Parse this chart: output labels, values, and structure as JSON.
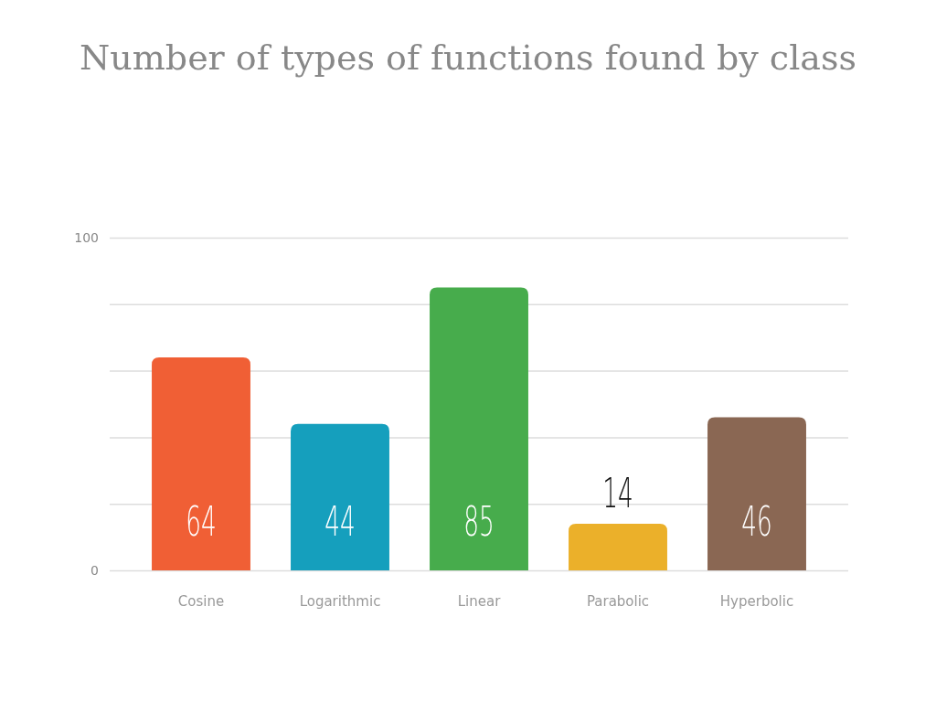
{
  "chart_data": {
    "type": "bar",
    "title": "Number of types of functions found by class",
    "categories": [
      "Cosine",
      "Logarithmic",
      "Linear",
      "Parabolic",
      "Hyperbolic"
    ],
    "values": [
      64,
      44,
      85,
      14,
      46
    ],
    "colors": [
      "#f05f35",
      "#159fbd",
      "#47ac4c",
      "#ebb02a",
      "#8a6753"
    ],
    "ylim": [
      0,
      100
    ],
    "yticks": [
      0,
      {
        "value": 20,
        "label": null
      },
      {
        "value": 40,
        "label": null
      },
      {
        "value": 60,
        "label": null
      },
      {
        "value": 80,
        "label": null
      },
      100
    ],
    "grid": "y",
    "data_labels": true
  }
}
